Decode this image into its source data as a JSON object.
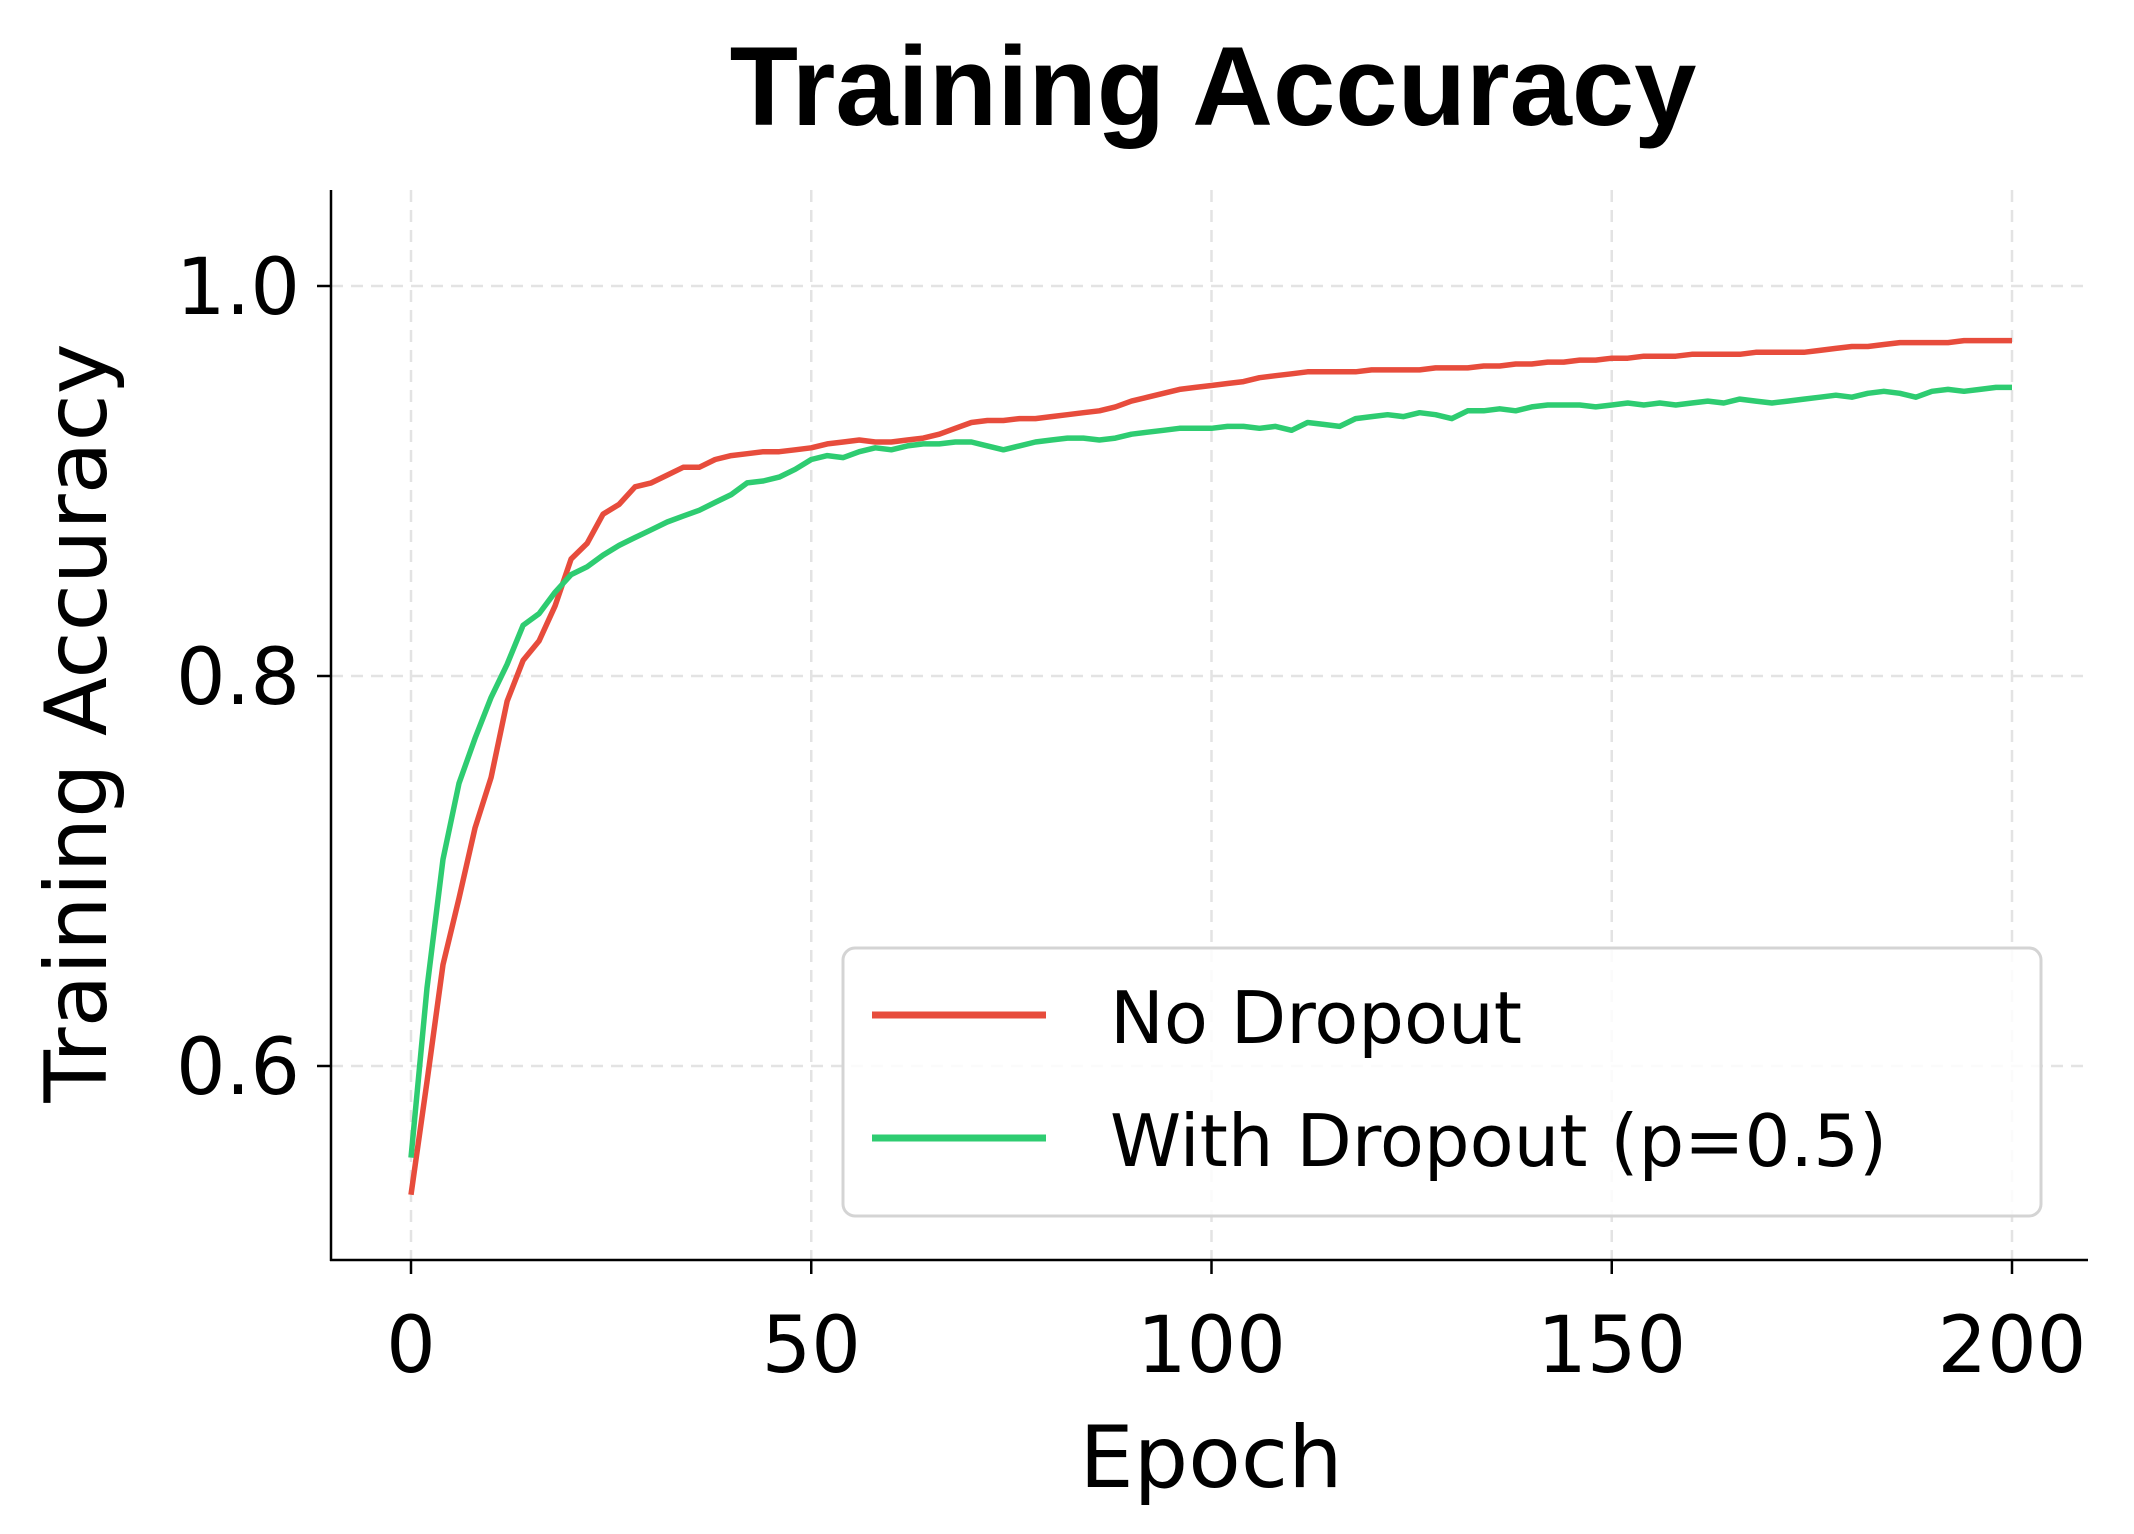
{
  "chart_data": {
    "type": "line",
    "title": "Training Accuracy",
    "xlabel": "Epoch",
    "ylabel": "Training Accuracy",
    "xlim": [
      -10,
      210
    ],
    "ylim": [
      0.51,
      1.05
    ],
    "xticks": [
      0,
      50,
      100,
      150,
      200
    ],
    "xtick_labels": [
      "0",
      "50",
      "100",
      "150",
      "200"
    ],
    "yticks": [
      0.6,
      0.8,
      1.0
    ],
    "ytick_labels": [
      "0.6",
      "0.8",
      "1.0"
    ],
    "grid": true,
    "grid_style": "dashed",
    "legend_position": "lower right",
    "x": [
      0,
      2,
      4,
      6,
      8,
      10,
      12,
      14,
      16,
      18,
      20,
      22,
      24,
      26,
      28,
      30,
      32,
      34,
      36,
      38,
      40,
      42,
      44,
      46,
      48,
      50,
      52,
      54,
      56,
      58,
      60,
      62,
      64,
      66,
      68,
      70,
      72,
      74,
      76,
      78,
      80,
      82,
      84,
      86,
      88,
      90,
      92,
      94,
      96,
      98,
      100,
      102,
      104,
      106,
      108,
      110,
      112,
      114,
      116,
      118,
      120,
      122,
      124,
      126,
      128,
      130,
      132,
      134,
      136,
      138,
      140,
      142,
      144,
      146,
      148,
      150,
      152,
      154,
      156,
      158,
      160,
      162,
      164,
      166,
      168,
      170,
      172,
      174,
      176,
      178,
      180,
      182,
      184,
      186,
      188,
      190,
      192,
      194,
      196,
      198,
      200
    ],
    "series": [
      {
        "name": "No Dropout",
        "color": "#e74c3c",
        "values": [
          0.534,
          0.592,
          0.652,
          0.686,
          0.722,
          0.748,
          0.787,
          0.808,
          0.818,
          0.836,
          0.86,
          0.868,
          0.883,
          0.888,
          0.897,
          0.899,
          0.903,
          0.907,
          0.907,
          0.911,
          0.913,
          0.914,
          0.915,
          0.915,
          0.916,
          0.917,
          0.919,
          0.92,
          0.921,
          0.92,
          0.92,
          0.921,
          0.922,
          0.924,
          0.927,
          0.93,
          0.931,
          0.931,
          0.932,
          0.932,
          0.933,
          0.934,
          0.935,
          0.936,
          0.938,
          0.941,
          0.943,
          0.945,
          0.947,
          0.948,
          0.949,
          0.95,
          0.951,
          0.953,
          0.954,
          0.955,
          0.956,
          0.956,
          0.956,
          0.956,
          0.957,
          0.957,
          0.957,
          0.957,
          0.958,
          0.958,
          0.958,
          0.959,
          0.959,
          0.96,
          0.96,
          0.961,
          0.961,
          0.962,
          0.962,
          0.963,
          0.963,
          0.964,
          0.964,
          0.964,
          0.965,
          0.965,
          0.965,
          0.965,
          0.966,
          0.966,
          0.966,
          0.966,
          0.967,
          0.968,
          0.969,
          0.969,
          0.97,
          0.971,
          0.971,
          0.971,
          0.971,
          0.972,
          0.972,
          0.972,
          0.972
        ]
      },
      {
        "name": "With Dropout (p=0.5)",
        "color": "#2ecc71",
        "values": [
          0.553,
          0.64,
          0.706,
          0.745,
          0.768,
          0.789,
          0.806,
          0.826,
          0.832,
          0.843,
          0.852,
          0.856,
          0.862,
          0.867,
          0.871,
          0.875,
          0.879,
          0.882,
          0.885,
          0.889,
          0.893,
          0.899,
          0.9,
          0.902,
          0.906,
          0.911,
          0.913,
          0.912,
          0.915,
          0.917,
          0.916,
          0.918,
          0.919,
          0.919,
          0.92,
          0.92,
          0.918,
          0.916,
          0.918,
          0.92,
          0.921,
          0.922,
          0.922,
          0.921,
          0.922,
          0.924,
          0.925,
          0.926,
          0.927,
          0.927,
          0.927,
          0.928,
          0.928,
          0.927,
          0.928,
          0.926,
          0.93,
          0.929,
          0.928,
          0.932,
          0.933,
          0.934,
          0.933,
          0.935,
          0.934,
          0.932,
          0.936,
          0.936,
          0.937,
          0.936,
          0.938,
          0.939,
          0.939,
          0.939,
          0.938,
          0.939,
          0.94,
          0.939,
          0.94,
          0.939,
          0.94,
          0.941,
          0.94,
          0.942,
          0.941,
          0.94,
          0.941,
          0.942,
          0.943,
          0.944,
          0.943,
          0.945,
          0.946,
          0.945,
          0.943,
          0.946,
          0.947,
          0.946,
          0.947,
          0.948,
          0.948
        ]
      }
    ]
  },
  "legend": {
    "items": [
      {
        "label": "No Dropout",
        "color": "#e74c3c"
      },
      {
        "label": "With Dropout (p=0.5)",
        "color": "#2ecc71"
      }
    ]
  }
}
